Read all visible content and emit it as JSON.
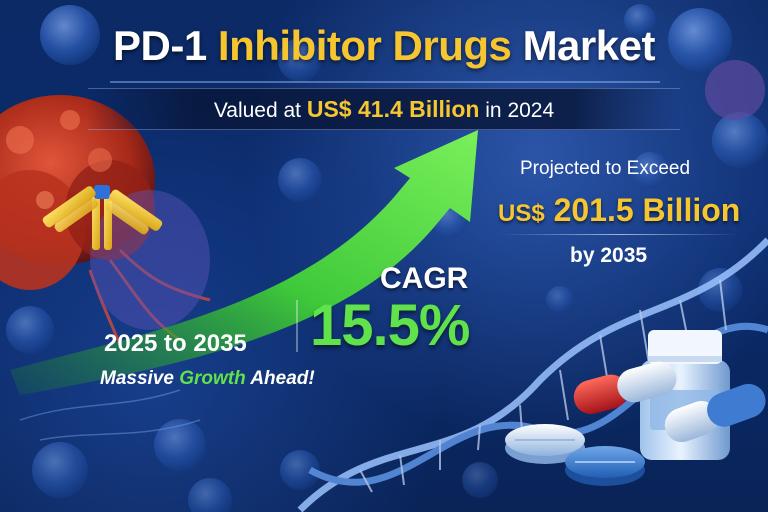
{
  "title": {
    "part1": "PD-1",
    "part2": "Inhibitor Drugs",
    "part3": "Market"
  },
  "valuation": {
    "prefix": "Valued at",
    "amount": "US$ 41.4 Billion",
    "suffix": "in 2024"
  },
  "projection": {
    "label": "Projected to Exceed",
    "currency": "US$",
    "amount": "201.5 Billion",
    "year": "by 2035"
  },
  "cagr": {
    "label": "CAGR",
    "value": "15.5%"
  },
  "period": "2025 to 2035",
  "tagline": {
    "part1": "Massive",
    "highlight": "Growth",
    "part2": "Ahead!"
  },
  "colors": {
    "background": "#0a2a6b",
    "gold": "#f6c631",
    "green": "#5fe24a",
    "white": "#ffffff",
    "tumor_red": "#c8321e"
  },
  "icons": [
    "antibody-icon",
    "tumor-cell-icon",
    "virus-cell-icon",
    "dna-helix-icon",
    "growth-arrow-icon",
    "pill-bottle-icon",
    "capsule-icon",
    "tablet-icon"
  ]
}
